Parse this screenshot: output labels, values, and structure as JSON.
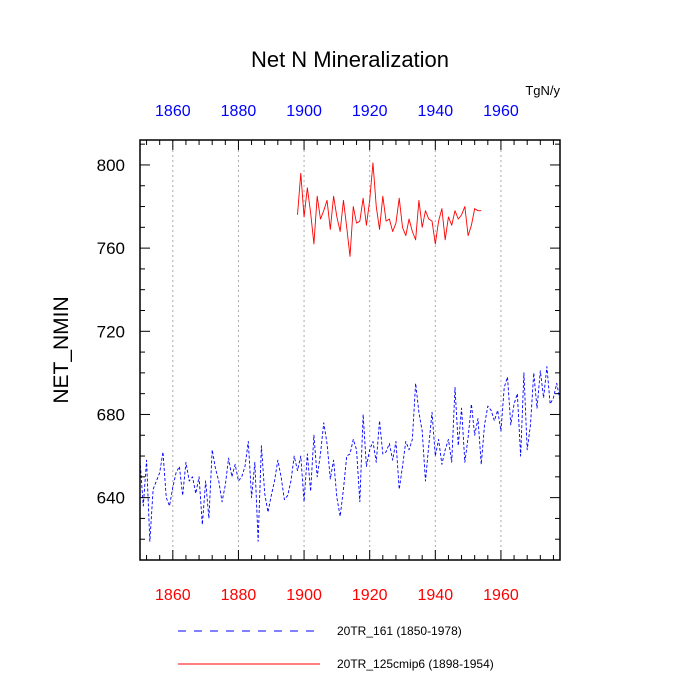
{
  "chart_data": {
    "type": "line",
    "title": "Net N Mineralization",
    "units": "TgN/y",
    "ylabel": "NET_NMIN",
    "xlabel": "",
    "xlim": [
      1850,
      1978
    ],
    "ylim": [
      610,
      812
    ],
    "yticks": [
      640,
      680,
      720,
      760,
      800
    ],
    "ytick_labels": [
      "640",
      "680",
      "720",
      "760",
      "800"
    ],
    "xticks": [
      1860,
      1880,
      1900,
      1920,
      1940,
      1960
    ],
    "xtick_labels_bottom": [
      "1860",
      "1880",
      "1900",
      "1920",
      "1940",
      "1960"
    ],
    "xtick_labels_top": [
      "1860",
      "1880",
      "1900",
      "1920",
      "1940",
      "1960"
    ],
    "bottom_axis_color": "#ff0000",
    "top_axis_color": "#0000ff",
    "grid": "vertical dotted",
    "legend_position": "bottom",
    "series": [
      {
        "name": "20TR_161 (1850-1978)",
        "color": "#0000ff",
        "dash": "dashed",
        "x_start": 1850,
        "values": [
          658,
          636,
          658,
          619,
          644,
          648,
          652,
          662,
          640,
          636,
          645,
          652,
          655,
          641,
          657,
          648,
          650,
          642,
          650,
          627,
          648,
          630,
          663,
          654,
          648,
          638,
          646,
          659,
          650,
          656,
          648,
          650,
          655,
          667,
          640,
          657,
          619,
          665,
          642,
          633,
          641,
          648,
          658,
          650,
          639,
          641,
          648,
          660,
          653,
          660,
          638,
          661,
          643,
          670,
          650,
          661,
          676,
          666,
          649,
          658,
          640,
          631,
          644,
          660,
          661,
          668,
          663,
          638,
          680,
          655,
          663,
          667,
          657,
          677,
          661,
          662,
          666,
          658,
          667,
          644,
          655,
          667,
          663,
          668,
          695,
          681,
          672,
          648,
          665,
          681,
          660,
          668,
          656,
          663,
          668,
          657,
          693,
          665,
          683,
          657,
          669,
          685,
          670,
          678,
          656,
          675,
          684,
          682,
          677,
          682,
          672,
          693,
          698,
          675,
          685,
          690,
          660,
          700,
          663,
          675,
          700,
          683,
          701,
          688,
          703,
          685,
          688,
          695,
          687
        ]
      },
      {
        "name": "20TR_125cmip6 (1898-1954)",
        "color": "#ff0000",
        "dash": "solid",
        "x_start": 1898,
        "values": [
          776,
          796,
          775,
          789,
          777,
          762,
          785,
          774,
          778,
          783,
          769,
          785,
          775,
          768,
          783,
          770,
          756,
          780,
          772,
          773,
          784,
          771,
          783,
          801,
          780,
          769,
          785,
          773,
          774,
          768,
          772,
          784,
          770,
          766,
          774,
          768,
          764,
          783,
          770,
          778,
          774,
          773,
          762,
          773,
          779,
          764,
          775,
          771,
          778,
          774,
          776,
          780,
          766,
          771,
          779,
          778,
          778
        ]
      }
    ]
  }
}
